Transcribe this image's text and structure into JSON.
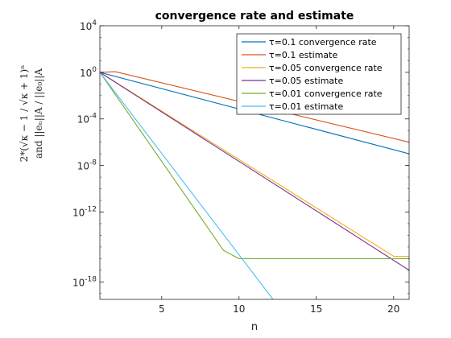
{
  "chart_data": {
    "type": "line",
    "title": "convergence rate and estimate",
    "xlabel": "n",
    "ylabel_lines": [
      "2*(√κ − 1 / √κ + 1)ⁿ",
      "and ||eₙ||A / ||e₀||A"
    ],
    "xlim": [
      1,
      21
    ],
    "ylim_log10": [
      -19.5,
      4
    ],
    "yscale": "log",
    "x_ticks": [
      5,
      10,
      15,
      20
    ],
    "y_ticks": [
      {
        "exp": 4,
        "label_base": "10",
        "label_exp": "4"
      },
      {
        "exp": 0,
        "label_base": "10",
        "label_exp": "0"
      },
      {
        "exp": -4,
        "label_base": "10",
        "label_exp": "-4"
      },
      {
        "exp": -8,
        "label_base": "10",
        "label_exp": "-8"
      },
      {
        "exp": -12,
        "label_base": "10",
        "label_exp": "-12"
      },
      {
        "exp": -18,
        "label_base": "10",
        "label_exp": "-18"
      }
    ],
    "grid": false,
    "legend_position": "top-right",
    "series": [
      {
        "name": "τ=0.1 convergence rate",
        "color": "#0072BD",
        "x": [
          1,
          21
        ],
        "log10_y": [
          0,
          -7.0
        ]
      },
      {
        "name": "τ=0.1 estimate",
        "color": "#D95319",
        "x": [
          1,
          2,
          21
        ],
        "log10_y": [
          0,
          0.05,
          -6.0
        ]
      },
      {
        "name": "τ=0.05 convergence rate",
        "color": "#EDB120",
        "x": [
          1,
          20,
          21
        ],
        "log10_y": [
          0,
          -15.8,
          -15.8
        ]
      },
      {
        "name": "τ=0.05 estimate",
        "color": "#7E2F8E",
        "x": [
          1,
          21
        ],
        "log10_y": [
          0,
          -17.0
        ]
      },
      {
        "name": "τ=0.01 convergence rate",
        "color": "#77AC30",
        "x": [
          1,
          9,
          10,
          21
        ],
        "log10_y": [
          0,
          -15.3,
          -16.0,
          -16.0
        ]
      },
      {
        "name": "τ=0.01 estimate",
        "color": "#4DBEEE",
        "x": [
          1,
          12.2
        ],
        "log10_y": [
          0,
          -19.5
        ]
      }
    ]
  }
}
